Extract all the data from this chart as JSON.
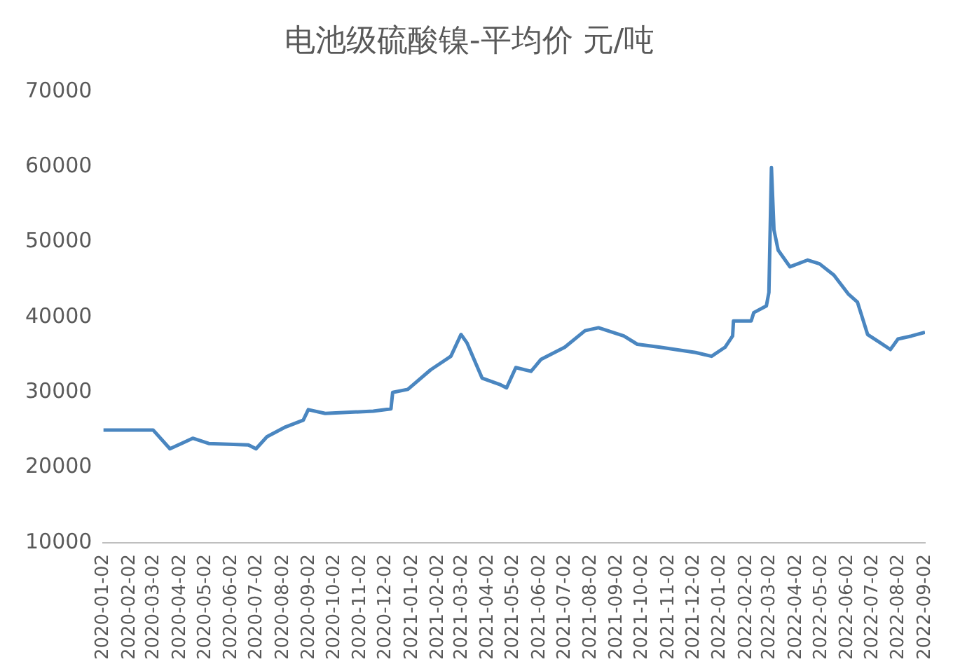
{
  "chart_data": {
    "type": "line",
    "title": "电池级硫酸镍-平均价 元/吨",
    "x": [
      "2020-01-02",
      "2020-03-01",
      "2020-03-21",
      "2020-04-17",
      "2020-05-06",
      "2020-06-22",
      "2020-07-01",
      "2020-07-14",
      "2020-08-05",
      "2020-08-26",
      "2020-09-01",
      "2020-09-21",
      "2020-11-17",
      "2020-12-08",
      "2020-12-10",
      "2020-12-28",
      "2021-01-24",
      "2021-02-17",
      "2021-03-01",
      "2021-03-08",
      "2021-03-26",
      "2021-04-17",
      "2021-04-24",
      "2021-05-05",
      "2021-05-23",
      "2021-06-04",
      "2021-07-02",
      "2021-07-26",
      "2021-08-11",
      "2021-09-10",
      "2021-09-26",
      "2021-10-23",
      "2021-12-04",
      "2021-12-23",
      "2022-01-08",
      "2022-01-17",
      "2022-01-18",
      "2022-02-08",
      "2022-02-11",
      "2022-02-26",
      "2022-03-01",
      "2022-03-04",
      "2022-03-07",
      "2022-03-12",
      "2022-03-26",
      "2022-04-16",
      "2022-04-30",
      "2022-05-17",
      "2022-06-03",
      "2022-06-14",
      "2022-06-26",
      "2022-07-11",
      "2022-07-23",
      "2022-08-01",
      "2022-08-17",
      "2022-09-02"
    ],
    "series": [
      {
        "color": "#4a86c0",
        "values": [
          25000,
          25000,
          22500,
          23900,
          23200,
          23000,
          22500,
          24100,
          25400,
          26300,
          27700,
          27200,
          27500,
          27800,
          30000,
          30400,
          33000,
          34800,
          37700,
          36600,
          31900,
          31000,
          30600,
          33300,
          32800,
          34400,
          36000,
          38200,
          38600,
          37500,
          36400,
          36000,
          35300,
          34800,
          36000,
          37500,
          39500,
          39500,
          40600,
          41500,
          43300,
          59900,
          51600,
          48900,
          46700,
          47600,
          47100,
          45600,
          43100,
          42000,
          37700,
          36600,
          35700,
          37100,
          37500,
          38000
        ]
      }
    ],
    "xlim": [
      "2020-01-02",
      "2022-09-02"
    ],
    "xticks": [
      "2020-01-02",
      "2020-02-02",
      "2020-03-02",
      "2020-04-02",
      "2020-05-02",
      "2020-06-02",
      "2020-07-02",
      "2020-08-02",
      "2020-09-02",
      "2020-10-02",
      "2020-11-02",
      "2020-12-02",
      "2021-01-02",
      "2021-02-02",
      "2021-03-02",
      "2021-04-02",
      "2021-05-02",
      "2021-06-02",
      "2021-07-02",
      "2021-08-02",
      "2021-09-02",
      "2021-10-02",
      "2021-11-02",
      "2021-12-02",
      "2022-01-02",
      "2022-02-02",
      "2022-03-02",
      "2022-04-02",
      "2022-05-02",
      "2022-06-02",
      "2022-07-02",
      "2022-08-02",
      "2022-09-02"
    ],
    "ylim": [
      10000,
      70000
    ],
    "yticks": [
      10000,
      20000,
      30000,
      40000,
      50000,
      60000,
      70000
    ],
    "grid": false,
    "legend": false,
    "marker": "none",
    "line_style": "solid"
  }
}
